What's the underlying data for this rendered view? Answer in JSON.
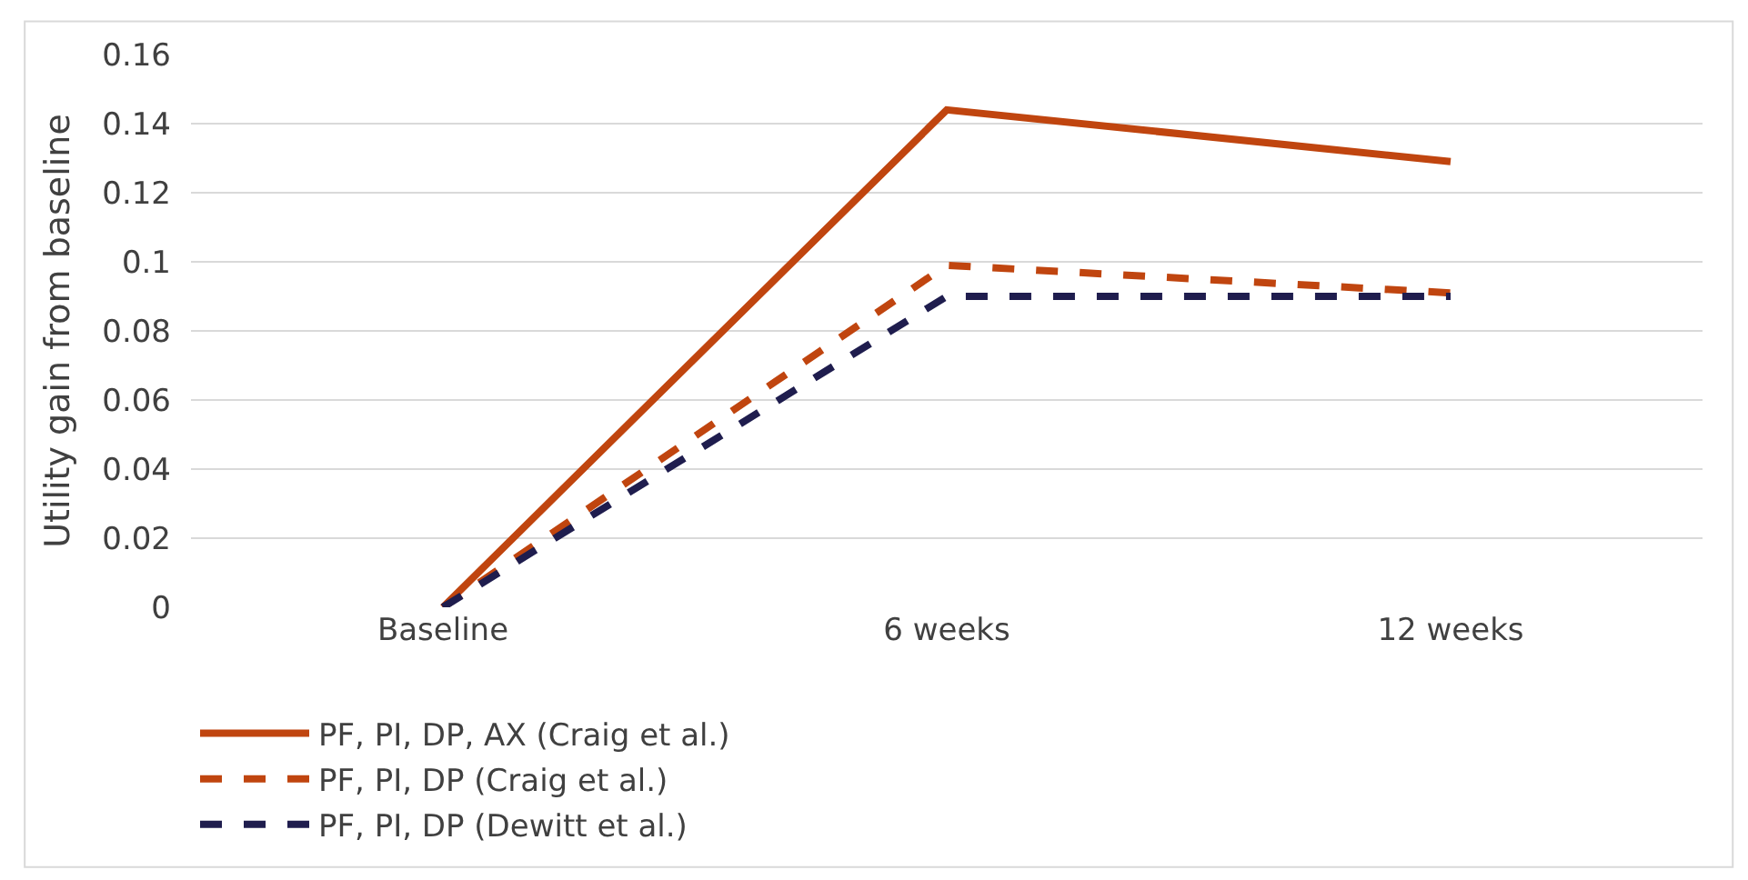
{
  "chart_data": {
    "type": "line",
    "ylabel": "Utility gain from baseline",
    "categories": [
      "Baseline",
      "6 weeks",
      "12 weeks"
    ],
    "series": [
      {
        "name": "PF, PI, DP, AX (Craig et al.)",
        "color": "#c0450f",
        "line_style": "solid",
        "values": [
          0,
          0.144,
          0.129
        ]
      },
      {
        "name": "PF, PI, DP (Craig et al.)",
        "color": "#c0450f",
        "line_style": "dashed",
        "values": [
          0,
          0.099,
          0.091
        ]
      },
      {
        "name": "PF, PI, DP (Dewitt et al.)",
        "color": "#1f1d4e",
        "line_style": "dashed",
        "values": [
          0,
          0.09,
          0.09
        ]
      }
    ],
    "ylim": [
      0,
      0.16
    ],
    "yticks": [
      0,
      0.02,
      0.04,
      0.06,
      0.08,
      0.1,
      0.12,
      0.14,
      0.16
    ],
    "grid": "y",
    "legend": "bottom",
    "marker": "none"
  }
}
